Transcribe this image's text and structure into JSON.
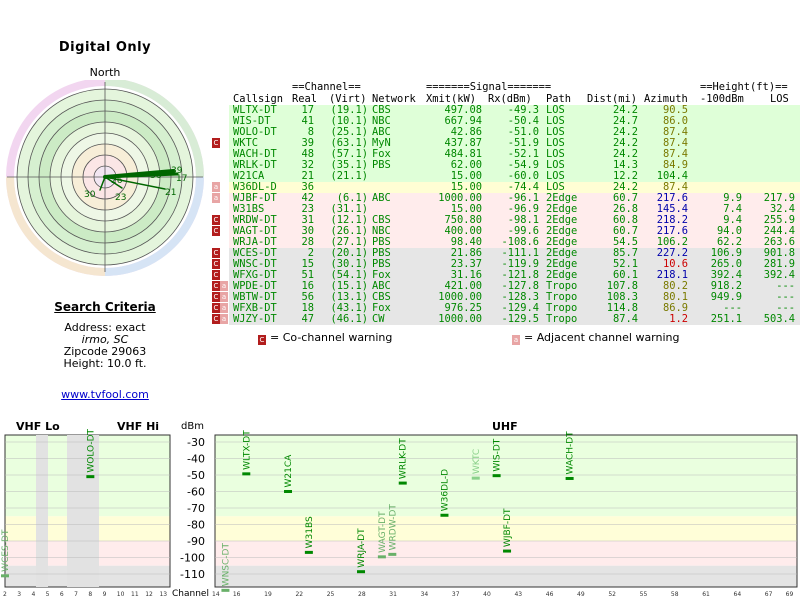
{
  "title": "Digital Only",
  "compass_north": "North",
  "criteria": {
    "heading": "Search Criteria",
    "address_label": "Address:",
    "address_value": "exact",
    "city": "irmo, SC",
    "zip_label": "Zipcode",
    "zip": "29063",
    "height": "Height: 10.0 ft."
  },
  "site_link": "www.tvfool.com",
  "table": {
    "group_channel": "==Channel==",
    "group_signal": "=======Signal=======",
    "group_height": "==Height(ft)==",
    "columns": [
      "Callsign",
      "Real",
      "(Virt)",
      "Network",
      "Xmit(kW)",
      "Rx(dBm)",
      "Path",
      "Dist(mi)",
      "Azimuth",
      "-100dBm",
      "LOS"
    ],
    "rows": [
      {
        "flag": "",
        "call": "WLTX-DT",
        "real": "17",
        "virt": "(19.1)",
        "net": "CBS",
        "xmit": "497.08",
        "rx": "-49.3",
        "path": "LOS",
        "dist": "24.2",
        "az": "90.5",
        "azc": "olive",
        "h100": "",
        "los": "",
        "bg": "#dfffd8"
      },
      {
        "flag": "",
        "call": "WIS-DT",
        "real": "41",
        "virt": "(10.1)",
        "net": "NBC",
        "xmit": "667.94",
        "rx": "-50.4",
        "path": "LOS",
        "dist": "24.7",
        "az": "86.0",
        "azc": "olive",
        "h100": "",
        "los": "",
        "bg": "#dfffd8"
      },
      {
        "flag": "",
        "call": "WOLO-DT",
        "real": "8",
        "virt": "(25.1)",
        "net": "ABC",
        "xmit": "42.86",
        "rx": "-51.0",
        "path": "LOS",
        "dist": "24.2",
        "az": "87.4",
        "azc": "olive",
        "h100": "",
        "los": "",
        "bg": "#dfffd8"
      },
      {
        "flag": "c",
        "call": "WKTC",
        "real": "39",
        "virt": "(63.1)",
        "net": "MyN",
        "xmit": "437.87",
        "rx": "-51.9",
        "path": "LOS",
        "dist": "24.2",
        "az": "87.4",
        "azc": "olive",
        "h100": "",
        "los": "",
        "bg": "#dfffd8"
      },
      {
        "flag": "",
        "call": "WACH-DT",
        "real": "48",
        "virt": "(57.1)",
        "net": "Fox",
        "xmit": "484.81",
        "rx": "-52.1",
        "path": "LOS",
        "dist": "24.2",
        "az": "87.4",
        "azc": "olive",
        "h100": "",
        "los": "",
        "bg": "#dfffd8"
      },
      {
        "flag": "",
        "call": "WRLK-DT",
        "real": "32",
        "virt": "(35.1)",
        "net": "PBS",
        "xmit": "62.00",
        "rx": "-54.9",
        "path": "LOS",
        "dist": "14.3",
        "az": "84.9",
        "azc": "olive",
        "h100": "",
        "los": "",
        "bg": "#dfffd8"
      },
      {
        "flag": "",
        "call": "W21CA",
        "real": "21",
        "virt": "(21.1)",
        "net": "",
        "xmit": "15.00",
        "rx": "-60.0",
        "path": "LOS",
        "dist": "12.2",
        "az": "104.4",
        "azc": "green",
        "h100": "",
        "los": "",
        "bg": "#dfffd8"
      },
      {
        "flag": "a",
        "call": "W36DL-D",
        "real": "36",
        "virt": "",
        "net": "",
        "xmit": "15.00",
        "rx": "-74.4",
        "path": "LOS",
        "dist": "24.2",
        "az": "87.4",
        "azc": "olive",
        "h100": "",
        "los": "",
        "bg": "#fffed4"
      },
      {
        "flag": "a",
        "call": "WJBF-DT",
        "real": "42",
        "virt": "(6.1)",
        "net": "ABC",
        "xmit": "1000.00",
        "rx": "-96.1",
        "path": "2Edge",
        "dist": "60.7",
        "az": "217.6",
        "azc": "blue",
        "h100": "9.9",
        "los": "217.9",
        "bg": "#ffecec"
      },
      {
        "flag": "",
        "call": "W31BS",
        "real": "23",
        "virt": "(31.1)",
        "net": "",
        "xmit": "15.00",
        "rx": "-96.9",
        "path": "2Edge",
        "dist": "26.8",
        "az": "145.4",
        "azc": "blue",
        "h100": "7.4",
        "los": "32.4",
        "bg": "#ffecec"
      },
      {
        "flag": "c",
        "call": "WRDW-DT",
        "real": "31",
        "virt": "(12.1)",
        "net": "CBS",
        "xmit": "750.80",
        "rx": "-98.1",
        "path": "2Edge",
        "dist": "60.8",
        "az": "218.2",
        "azc": "blue",
        "h100": "9.4",
        "los": "255.9",
        "bg": "#ffecec"
      },
      {
        "flag": "c",
        "call": "WAGT-DT",
        "real": "30",
        "virt": "(26.1)",
        "net": "NBC",
        "xmit": "400.00",
        "rx": "-99.6",
        "path": "2Edge",
        "dist": "60.7",
        "az": "217.6",
        "azc": "blue",
        "h100": "94.0",
        "los": "244.4",
        "bg": "#ffecec"
      },
      {
        "flag": "",
        "call": "WRJA-DT",
        "real": "28",
        "virt": "(27.1)",
        "net": "PBS",
        "xmit": "98.40",
        "rx": "-108.6",
        "path": "2Edge",
        "dist": "54.5",
        "az": "106.2",
        "azc": "green",
        "h100": "62.2",
        "los": "263.6",
        "bg": "#ffecec"
      },
      {
        "flag": "c",
        "call": "WCES-DT",
        "real": "2",
        "virt": "(20.1)",
        "net": "PBS",
        "xmit": "21.86",
        "rx": "-111.1",
        "path": "2Edge",
        "dist": "85.7",
        "az": "227.2",
        "azc": "blue",
        "h100": "106.9",
        "los": "901.8",
        "bg": "#e6e6e6"
      },
      {
        "flag": "c",
        "call": "WNSC-DT",
        "real": "15",
        "virt": "(30.1)",
        "net": "PBS",
        "xmit": "23.37",
        "rx": "-119.9",
        "path": "2Edge",
        "dist": "52.1",
        "az": "10.6",
        "azc": "red",
        "h100": "265.0",
        "los": "281.9",
        "bg": "#e6e6e6"
      },
      {
        "flag": "c",
        "call": "WFXG-DT",
        "real": "51",
        "virt": "(54.1)",
        "net": "Fox",
        "xmit": "31.16",
        "rx": "-121.8",
        "path": "2Edge",
        "dist": "60.1",
        "az": "218.1",
        "azc": "blue",
        "h100": "392.4",
        "los": "392.4",
        "bg": "#e6e6e6"
      },
      {
        "flag": "ca",
        "call": "WPDE-DT",
        "real": "16",
        "virt": "(15.1)",
        "net": "ABC",
        "xmit": "421.00",
        "rx": "-127.8",
        "path": "Tropo",
        "dist": "107.8",
        "az": "80.2",
        "azc": "olive",
        "h100": "918.2",
        "los": "---",
        "bg": "#e6e6e6"
      },
      {
        "flag": "ca",
        "call": "WBTW-DT",
        "real": "56",
        "virt": "(13.1)",
        "net": "CBS",
        "xmit": "1000.00",
        "rx": "-128.3",
        "path": "Tropo",
        "dist": "108.3",
        "az": "80.1",
        "azc": "olive",
        "h100": "949.9",
        "los": "---",
        "bg": "#e6e6e6"
      },
      {
        "flag": "ca",
        "call": "WFXB-DT",
        "real": "18",
        "virt": "(43.1)",
        "net": "Fox",
        "xmit": "976.25",
        "rx": "-129.4",
        "path": "Tropo",
        "dist": "114.8",
        "az": "86.9",
        "azc": "olive",
        "h100": "---",
        "los": "---",
        "bg": "#e6e6e6"
      },
      {
        "flag": "ca",
        "call": "WJZY-DT",
        "real": "47",
        "virt": "(46.1)",
        "net": "CW",
        "xmit": "1000.00",
        "rx": "-129.5",
        "path": "Tropo",
        "dist": "87.4",
        "az": "1.2",
        "azc": "red",
        "h100": "251.1",
        "los": "503.4",
        "bg": "#e6e6e6"
      }
    ]
  },
  "legend": {
    "co_flag": "C",
    "co": "= Co-channel warning",
    "adj_flag": "a",
    "adj": "= Adjacent channel warning"
  },
  "radar_labels": [
    "30",
    "23",
    "26",
    "36",
    "39",
    "17",
    "21"
  ],
  "chart_data": {
    "type": "scatter",
    "bands": [
      "VHF Lo",
      "VHF Hi",
      "UHF"
    ],
    "ylabel": "dBm",
    "xlabel": "Channel",
    "yticks": [
      -30,
      -40,
      -50,
      -60,
      -70,
      -80,
      -90,
      -100,
      -110
    ],
    "vhf_xticks": [
      "2",
      "3",
      "4",
      "5",
      "6",
      "7",
      "8",
      "9",
      "10",
      "11",
      "12",
      "13"
    ],
    "uhf_xticks": [
      "14",
      "16",
      "19",
      "22",
      "25",
      "28",
      "31",
      "34",
      "37",
      "40",
      "43",
      "46",
      "49",
      "52",
      "55",
      "58",
      "61",
      "64",
      "67",
      "69"
    ],
    "points": [
      {
        "call": "WCES-DT",
        "ch": 2,
        "dbm": -111.1,
        "color": "#69b069"
      },
      {
        "call": "WOLO-DT",
        "ch": 8,
        "dbm": -51.0,
        "color": "#008800"
      },
      {
        "call": "WNSC-DT",
        "ch": 15,
        "dbm": -119.9,
        "color": "#69b069"
      },
      {
        "call": "WLTX-DT",
        "ch": 17,
        "dbm": -49.3,
        "color": "#008800"
      },
      {
        "call": "W21CA",
        "ch": 21,
        "dbm": -60.0,
        "color": "#008800"
      },
      {
        "call": "W31BS",
        "ch": 23,
        "dbm": -96.9,
        "color": "#008800"
      },
      {
        "call": "WRJA-DT",
        "ch": 28,
        "dbm": -108.6,
        "color": "#008800"
      },
      {
        "call": "WAGT-DT",
        "ch": 30,
        "dbm": -99.6,
        "color": "#69b069"
      },
      {
        "call": "WRDW-DT",
        "ch": 31,
        "dbm": -98.1,
        "color": "#69b069"
      },
      {
        "call": "WRLK-DT",
        "ch": 32,
        "dbm": -54.9,
        "color": "#008800"
      },
      {
        "call": "W36DL-D",
        "ch": 36,
        "dbm": -74.4,
        "color": "#008800"
      },
      {
        "call": "WKTC",
        "ch": 39,
        "dbm": -51.9,
        "color": "#8ad08a"
      },
      {
        "call": "WIS-DT",
        "ch": 41,
        "dbm": -50.4,
        "color": "#008800"
      },
      {
        "call": "WJBF-DT",
        "ch": 42,
        "dbm": -96.1,
        "color": "#008800"
      },
      {
        "call": "WACH-DT",
        "ch": 48,
        "dbm": -52.1,
        "color": "#008800"
      }
    ]
  }
}
